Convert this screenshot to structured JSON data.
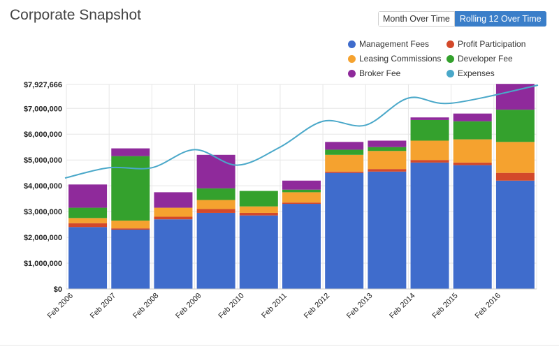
{
  "header": {
    "title": "Corporate Snapshot",
    "toggle": [
      {
        "label": "Month Over Time",
        "active": false
      },
      {
        "label": "Rolling 12 Over Time",
        "active": true
      }
    ]
  },
  "colors": {
    "accent": "#3a7ec9",
    "management": "#3f6ccc",
    "profit": "#d3492a",
    "leasing": "#f5a22f",
    "developer": "#34a12d",
    "broker": "#8f2a9b",
    "expenses": "#4aa8c9"
  },
  "chart_data": {
    "type": "bar",
    "stacked": true,
    "title": "Corporate Snapshot",
    "categories": [
      "Feb 2006",
      "Feb 2007",
      "Feb 2008",
      "Feb 2009",
      "Feb 2010",
      "Feb 2011",
      "Feb 2012",
      "Feb 2013",
      "Feb 2014",
      "Feb 2015",
      "Feb 2016"
    ],
    "series": [
      {
        "name": "Management Fees",
        "color": "#3f6ccc",
        "values": [
          2400000,
          2300000,
          2700000,
          2950000,
          2850000,
          3300000,
          4500000,
          4550000,
          4900000,
          4800000,
          4200000
        ]
      },
      {
        "name": "Profit Participation",
        "color": "#d3492a",
        "values": [
          150000,
          50000,
          100000,
          150000,
          100000,
          50000,
          50000,
          100000,
          100000,
          100000,
          300000
        ]
      },
      {
        "name": "Leasing Commissions",
        "color": "#f5a22f",
        "values": [
          200000,
          300000,
          350000,
          350000,
          250000,
          400000,
          650000,
          700000,
          750000,
          900000,
          1200000
        ]
      },
      {
        "name": "Developer Fee",
        "color": "#34a12d",
        "values": [
          400000,
          2500000,
          0,
          450000,
          600000,
          100000,
          200000,
          150000,
          800000,
          700000,
          1250000
        ]
      },
      {
        "name": "Broker Fee",
        "color": "#8f2a9b",
        "values": [
          900000,
          300000,
          600000,
          1300000,
          0,
          350000,
          300000,
          250000,
          100000,
          300000,
          1000000
        ]
      }
    ],
    "line_series": {
      "name": "Expenses",
      "color": "#4aa8c9",
      "x": [
        0,
        1,
        2,
        3,
        4,
        5,
        6,
        7,
        8,
        9,
        10
      ],
      "values": [
        4300000,
        4700000,
        4700000,
        5400000,
        4800000,
        5500000,
        6500000,
        6350000,
        7400000,
        7200000,
        7900000
      ]
    },
    "y_ticks": [
      {
        "value": 0,
        "label": "$0"
      },
      {
        "value": 1000000,
        "label": "$1,000,000"
      },
      {
        "value": 2000000,
        "label": "$2,000,000"
      },
      {
        "value": 3000000,
        "label": "$3,000,000"
      },
      {
        "value": 4000000,
        "label": "$4,000,000"
      },
      {
        "value": 5000000,
        "label": "$5,000,000"
      },
      {
        "value": 6000000,
        "label": "$6,000,000"
      },
      {
        "value": 7000000,
        "label": "$7,000,000"
      },
      {
        "value": 7927666,
        "label": "$7,927,666"
      }
    ],
    "ylim": [
      0,
      7927666
    ],
    "grid": true,
    "legend_position": "top-right"
  }
}
